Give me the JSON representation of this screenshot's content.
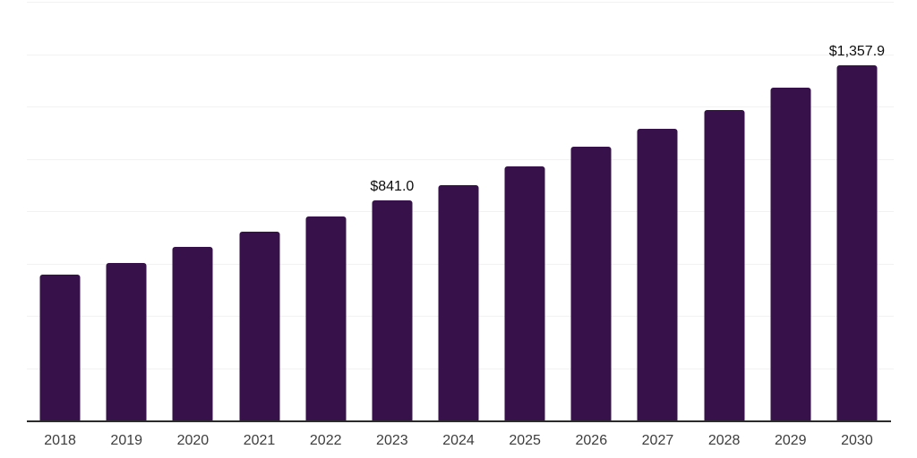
{
  "chart_data": {
    "type": "bar",
    "title": "",
    "xlabel": "",
    "ylabel": "",
    "categories": [
      "2018",
      "2019",
      "2020",
      "2021",
      "2022",
      "2023",
      "2024",
      "2025",
      "2026",
      "2027",
      "2028",
      "2029",
      "2030"
    ],
    "values": [
      558,
      603,
      664,
      722,
      780,
      841.0,
      899,
      970,
      1045,
      1113,
      1188,
      1273,
      1357.9
    ],
    "value_labels": [
      {
        "category": "2023",
        "text": "$841.0"
      },
      {
        "category": "2030",
        "text": "$1,357.9"
      }
    ],
    "ylim": [
      0,
      1600
    ],
    "gridline_step": 200,
    "grid": true,
    "legend_position": "none",
    "colors": {
      "bar": "#36114A",
      "gridline": "#F2F2F2",
      "axis_line": "#2B2B2B",
      "tick_label": "#3D3D3D",
      "value_label": "#0D0D0D",
      "background": "#FFFFFF"
    }
  }
}
